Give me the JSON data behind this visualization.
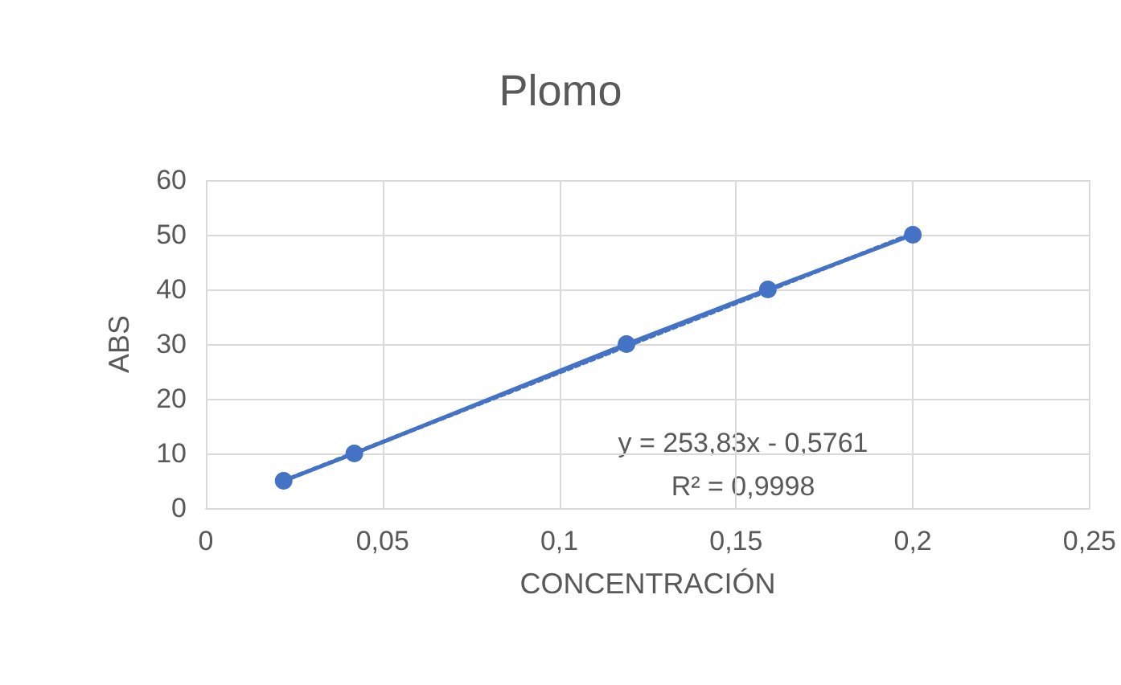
{
  "chart_data": {
    "type": "line",
    "title": "Plomo",
    "xlabel": "CONCENTRACIÓN",
    "ylabel": "ABS",
    "x": [
      0.022,
      0.042,
      0.119,
      0.159,
      0.2
    ],
    "series": [
      {
        "color": "#4472c4",
        "values": [
          5,
          10,
          30,
          40,
          50
        ],
        "marker": "circle",
        "line_style": "solid"
      },
      {
        "type": "line",
        "color": "#4472c4",
        "x": [
          0.022,
          0.2
        ],
        "values": [
          5,
          50.2
        ],
        "line_style": "dotted"
      }
    ],
    "xlim": [
      0,
      0.25
    ],
    "xticks": [
      0,
      {
        "value": 0.05,
        "label": "0,05"
      },
      {
        "value": 0.1,
        "label": "0,1"
      },
      {
        "value": 0.15,
        "label": "0,15"
      },
      {
        "value": 0.2,
        "label": "0,2"
      },
      {
        "value": 0.25,
        "label": "0,25"
      }
    ],
    "ylim": [
      0,
      60
    ],
    "yticks": [
      0,
      10,
      20,
      30,
      40,
      50,
      60
    ],
    "grid": true,
    "annotations": [
      "y = 253,83x - 0,5761",
      "R² = 0,9998"
    ]
  }
}
